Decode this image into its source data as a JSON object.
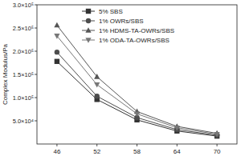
{
  "chart_data": {
    "type": "line",
    "y_label": "Complex Modulus/Pa",
    "x": [
      46,
      52,
      58,
      64,
      70
    ],
    "xlim": [
      43,
      73
    ],
    "xticks": [
      46,
      52,
      58,
      64,
      70
    ],
    "ylim": [
      0,
      300000
    ],
    "yticks": [
      {
        "value": 50000,
        "label": "5.0×10⁴"
      },
      {
        "value": 100000,
        "label": "1.0×10⁵"
      },
      {
        "value": 150000,
        "label": "1.5×10⁵"
      },
      {
        "value": 200000,
        "label": "2.0×10⁵"
      },
      {
        "value": 250000,
        "label": "2.5×10⁵"
      },
      {
        "value": 300000,
        "label": "3.0×10⁵"
      }
    ],
    "grid": false,
    "legend": "upper center",
    "series": [
      {
        "name": "5% SBS",
        "color": "#333333",
        "marker": "square",
        "line_style": "solid",
        "values": [
          178000,
          96000,
          52000,
          28000,
          17000
        ]
      },
      {
        "name": "1% OWRs/SBS",
        "color": "#4d4d4d",
        "marker": "circle",
        "line_style": "solid",
        "values": [
          198000,
          103000,
          57000,
          31000,
          19000
        ]
      },
      {
        "name": "1% HDMS-TA-OWRs/SBS",
        "color": "#555555",
        "marker": "triangle-up",
        "line_style": "solid",
        "values": [
          256000,
          145000,
          70000,
          38000,
          23000
        ]
      },
      {
        "name": "1% ODA-TA-OWRs/SBS",
        "color": "#777777",
        "marker": "triangle-down",
        "line_style": "solid",
        "values": [
          233000,
          128000,
          65000,
          35000,
          21000
        ]
      }
    ]
  }
}
